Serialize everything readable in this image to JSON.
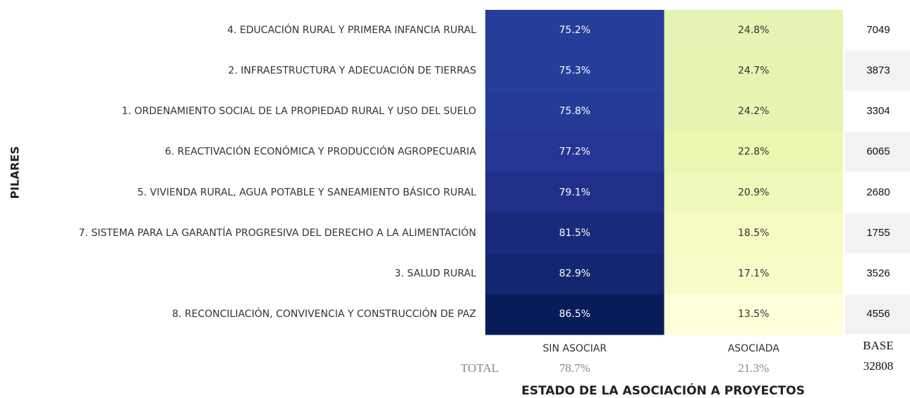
{
  "chart_data": {
    "type": "heatmap",
    "y_label": "PILARES",
    "x_label": "ESTADO DE LA ASOCIACIÓN A PROYECTOS",
    "colormap": "YlGnBu",
    "categories": [
      "4. EDUCACIÓN RURAL Y PRIMERA INFANCIA RURAL",
      "2. INFRAESTRUCTURA Y ADECUACIÓN DE TIERRAS",
      "1. ORDENAMIENTO SOCIAL DE LA PROPIEDAD RURAL Y USO DEL SUELO",
      "6. REACTIVACIÓN ECONÓMICA Y PRODUCCIÓN AGROPECUARIA",
      "5. VIVIENDA RURAL, AGUA POTABLE Y SANEAMIENTO BÁSICO RURAL",
      "7. SISTEMA PARA LA GARANTÍA PROGRESIVA DEL DERECHO A LA ALIMENTACIÓN",
      "3. SALUD RURAL",
      "8. RECONCILIACIÓN, CONVIVENCIA Y CONSTRUCCIÓN DE PAZ"
    ],
    "series": [
      {
        "name": "SIN ASOCIAR",
        "values": [
          75.2,
          75.3,
          75.8,
          77.2,
          79.1,
          81.5,
          82.9,
          86.5
        ],
        "value_labels": [
          "75.2%",
          "75.3%",
          "75.8%",
          "77.2%",
          "79.1%",
          "81.5%",
          "82.9%",
          "86.5%"
        ]
      },
      {
        "name": "ASOCIADA",
        "values": [
          24.8,
          24.7,
          24.2,
          22.8,
          20.9,
          18.5,
          17.1,
          13.5
        ],
        "value_labels": [
          "24.8%",
          "24.7%",
          "24.2%",
          "22.8%",
          "20.9%",
          "18.5%",
          "17.1%",
          "13.5%"
        ]
      }
    ],
    "base_label": "BASE",
    "base": [
      7049,
      3873,
      3304,
      6065,
      2680,
      1755,
      3526,
      4556
    ],
    "total_label": "TOTAL",
    "totals": [
      78.7,
      21.3
    ],
    "total_labels": [
      "78.7%",
      "21.3%"
    ],
    "base_total": 32808
  }
}
